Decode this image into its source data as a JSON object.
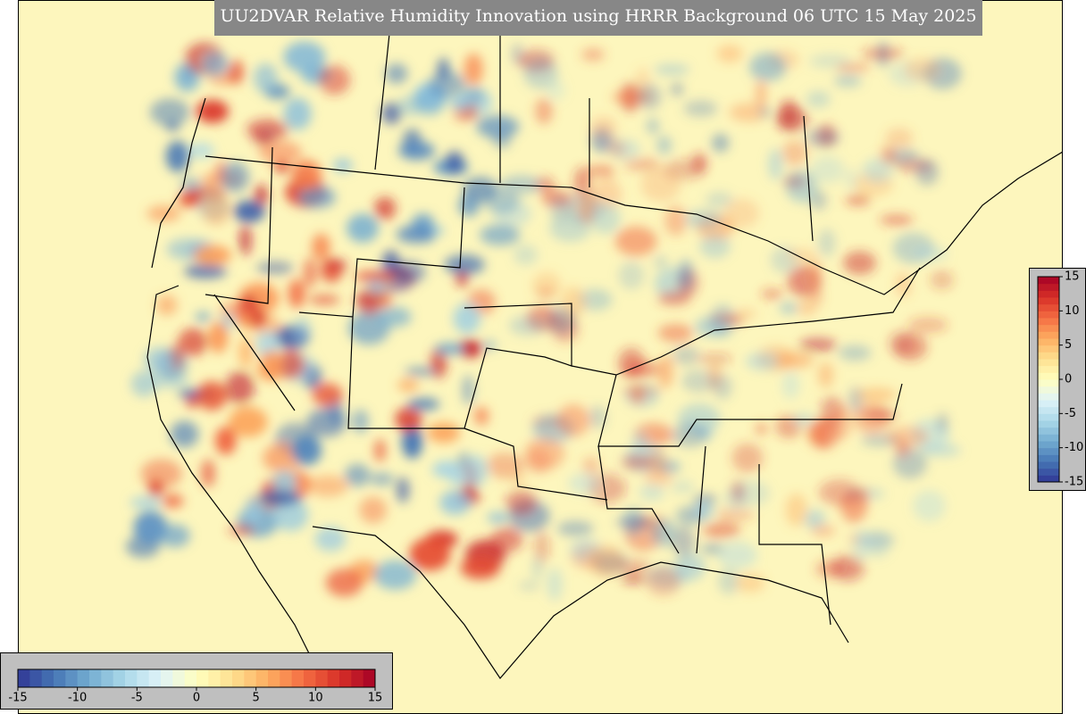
{
  "title": "UU2DVAR Relative Humidity Innovation using HRRR Background 06 UTC 15 May 2025",
  "colorbar_bottom": {
    "lim": [
      -15,
      15
    ],
    "ticks": [
      -15,
      -10,
      -5,
      0,
      5,
      10,
      15
    ]
  },
  "colorbar_right": {
    "lim": [
      -15,
      15
    ],
    "ticks": [
      15,
      10,
      5,
      0,
      -5,
      -10,
      -15
    ]
  }
}
